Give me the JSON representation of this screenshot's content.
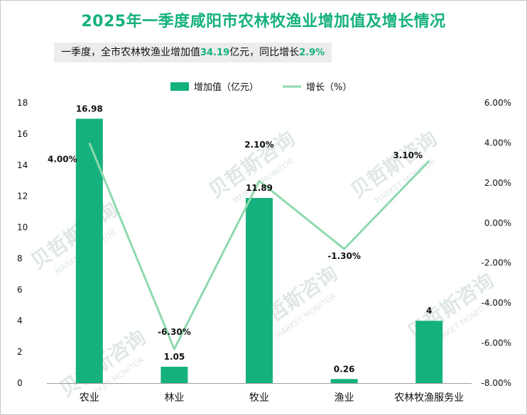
{
  "title": "2025年一季度咸阳市农林牧渔业增加值及增长情况",
  "subtitle": {
    "prefix": "一季度，全市农林牧渔业增加值",
    "value": "34.19",
    "middle": "亿元，同比增长",
    "growth": "2.9%"
  },
  "watermark": {
    "cn": "贝哲斯咨询",
    "en": "MARKET MONITOR"
  },
  "colors": {
    "bar": "#14b07d",
    "line": "#8ed9ae",
    "title": "#14b07d",
    "grid_axis": "#9e9e9e"
  },
  "chart_data": {
    "type": "bar",
    "categories": [
      "农业",
      "林业",
      "牧业",
      "渔业",
      "农林牧渔服务业"
    ],
    "series": [
      {
        "name": "增加值（亿元）",
        "type": "bar",
        "axis": "left",
        "values": [
          16.98,
          1.05,
          11.89,
          0.26,
          4
        ],
        "labels": [
          "16.98",
          "1.05",
          "11.89",
          "0.26",
          "4"
        ]
      },
      {
        "name": "增长（%）",
        "type": "line",
        "axis": "right",
        "values": [
          4.0,
          -6.3,
          2.1,
          -1.3,
          3.1
        ],
        "labels": [
          "4.00%",
          "-6.30%",
          "2.10%",
          "-1.30%",
          "3.10%"
        ]
      }
    ],
    "y_left": {
      "min": 0,
      "max": 18,
      "ticks": [
        "0",
        "2",
        "4",
        "6",
        "8",
        "10",
        "12",
        "14",
        "16",
        "18"
      ]
    },
    "y_right": {
      "min": -8,
      "max": 6,
      "ticks": [
        "-8.00%",
        "-6.00%",
        "-4.00%",
        "-2.00%",
        "0.00%",
        "2.00%",
        "4.00%",
        "6.00%"
      ]
    },
    "legend": "top-center",
    "grid": false
  }
}
